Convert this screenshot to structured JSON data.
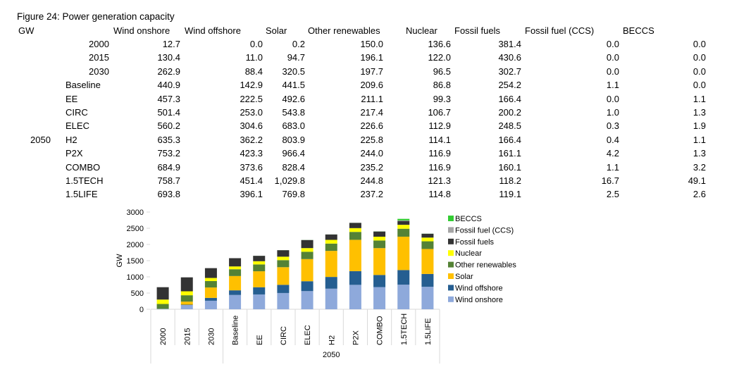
{
  "figure_title": "Figure 24: Power generation capacity",
  "unit_label": "GW",
  "table": {
    "columns": [
      "Wind onshore",
      "Wind offshore",
      "Solar",
      "Other renewables",
      "Nuclear",
      "Fossil fuels",
      "Fossil fuel (CCS)",
      "BECCS"
    ],
    "group_label": "2050",
    "rows": [
      {
        "label": "2000",
        "values": [
          "12.7",
          "0.0",
          "0.2",
          "150.0",
          "136.6",
          "381.4",
          "0.0",
          "0.0"
        ]
      },
      {
        "label": "2015",
        "values": [
          "130.4",
          "11.0",
          "94.7",
          "196.1",
          "122.0",
          "430.6",
          "0.0",
          "0.0"
        ]
      },
      {
        "label": "2030",
        "values": [
          "262.9",
          "88.4",
          "320.5",
          "197.7",
          "96.5",
          "302.7",
          "0.0",
          "0.0"
        ]
      },
      {
        "label": "Baseline",
        "values": [
          "440.9",
          "142.9",
          "441.5",
          "209.6",
          "86.8",
          "254.2",
          "1.1",
          "0.0"
        ]
      },
      {
        "label": "EE",
        "values": [
          "457.3",
          "222.5",
          "492.6",
          "211.1",
          "99.3",
          "166.4",
          "0.0",
          "1.1"
        ]
      },
      {
        "label": "CIRC",
        "values": [
          "501.4",
          "253.0",
          "543.8",
          "217.4",
          "106.7",
          "200.2",
          "1.0",
          "1.3"
        ]
      },
      {
        "label": "ELEC",
        "values": [
          "560.2",
          "304.6",
          "683.0",
          "226.6",
          "112.9",
          "248.5",
          "0.3",
          "1.9"
        ]
      },
      {
        "label": "H2",
        "values": [
          "635.3",
          "362.2",
          "803.9",
          "225.8",
          "114.1",
          "166.4",
          "0.4",
          "1.1"
        ]
      },
      {
        "label": "P2X",
        "values": [
          "753.2",
          "423.3",
          "966.4",
          "244.0",
          "116.9",
          "161.1",
          "4.2",
          "1.3"
        ]
      },
      {
        "label": "COMBO",
        "values": [
          "684.9",
          "373.6",
          "828.4",
          "235.2",
          "116.9",
          "160.1",
          "1.1",
          "3.2"
        ]
      },
      {
        "label": "1.5TECH",
        "values": [
          "758.7",
          "451.4",
          "1,029.8",
          "244.8",
          "121.3",
          "118.2",
          "16.7",
          "49.1"
        ]
      },
      {
        "label": "1.5LIFE",
        "values": [
          "693.8",
          "396.1",
          "769.8",
          "237.2",
          "114.8",
          "119.1",
          "2.5",
          "2.6"
        ]
      }
    ]
  },
  "chart_data": {
    "type": "bar",
    "stacked": true,
    "categories": [
      "2000",
      "2015",
      "2030",
      "Baseline",
      "EE",
      "CIRC",
      "ELEC",
      "H2",
      "P2X",
      "COMBO",
      "1.5TECH",
      "1.5LIFE"
    ],
    "group_label": "2050",
    "ylabel": "GW",
    "ylim": [
      0,
      3000
    ],
    "yticks": [
      0,
      500,
      1000,
      1500,
      2000,
      2500,
      3000
    ],
    "grid": false,
    "legend_position": "right",
    "series": [
      {
        "name": "Wind onshore",
        "color": "#8ea9db",
        "values": [
          12.7,
          130.4,
          262.9,
          440.9,
          457.3,
          501.4,
          560.2,
          635.3,
          753.2,
          684.9,
          758.7,
          693.8
        ]
      },
      {
        "name": "Wind offshore",
        "color": "#255e91",
        "values": [
          0.0,
          11.0,
          88.4,
          142.9,
          222.5,
          253.0,
          304.6,
          362.2,
          423.3,
          373.6,
          451.4,
          396.1
        ]
      },
      {
        "name": "Solar",
        "color": "#ffc000",
        "values": [
          0.2,
          94.7,
          320.5,
          441.5,
          492.6,
          543.8,
          683.0,
          803.9,
          966.4,
          828.4,
          1029.8,
          769.8
        ]
      },
      {
        "name": "Other renewables",
        "color": "#548235",
        "values": [
          150.0,
          196.1,
          197.7,
          209.6,
          211.1,
          217.4,
          226.6,
          225.8,
          244.0,
          235.2,
          244.8,
          237.2
        ]
      },
      {
        "name": "Nuclear",
        "color": "#ffff00",
        "values": [
          136.6,
          122.0,
          96.5,
          86.8,
          99.3,
          106.7,
          112.9,
          114.1,
          116.9,
          116.9,
          121.3,
          114.8
        ]
      },
      {
        "name": "Fossil fuels",
        "color": "#333333",
        "values": [
          381.4,
          430.6,
          302.7,
          254.2,
          166.4,
          200.2,
          248.5,
          166.4,
          161.1,
          160.1,
          118.2,
          119.1
        ]
      },
      {
        "name": "Fossil fuel (CCS)",
        "color": "#a5a5a5",
        "values": [
          0.0,
          0.0,
          0.0,
          1.1,
          0.0,
          1.0,
          0.3,
          0.4,
          4.2,
          1.1,
          16.7,
          2.5
        ]
      },
      {
        "name": "BECCS",
        "color": "#33cc33",
        "values": [
          0.0,
          0.0,
          0.0,
          0.0,
          1.1,
          1.3,
          1.9,
          1.1,
          1.3,
          3.2,
          49.1,
          2.6
        ]
      }
    ]
  }
}
